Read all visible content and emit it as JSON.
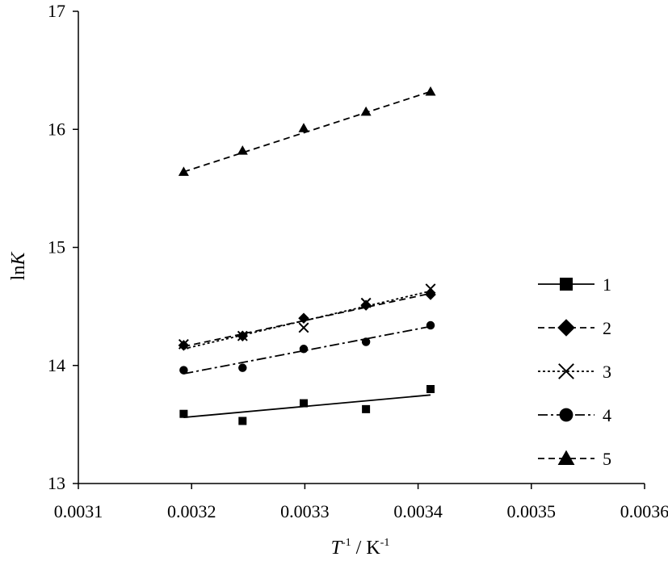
{
  "chart_data": {
    "type": "scatter",
    "xlabel": {
      "main": "T",
      "sup1": "-1",
      "rest": " / K",
      "sup2": "-1"
    },
    "ylabel": {
      "main": "ln",
      "italic": "K"
    },
    "xlim": [
      0.0031,
      0.0036
    ],
    "ylim": [
      13,
      17
    ],
    "xticks": [
      0.0031,
      0.0032,
      0.0033,
      0.0034,
      0.0035,
      0.0036
    ],
    "xtick_labels": [
      "0.0031",
      "0.0032",
      "0.0033",
      "0.0034",
      "0.0035",
      "0.0036"
    ],
    "yticks": [
      13,
      14,
      15,
      16,
      17
    ],
    "ytick_labels": [
      "13",
      "14",
      "15",
      "16",
      "17"
    ],
    "grid": false,
    "legend_position": "right",
    "series": [
      {
        "name": "1",
        "marker": "square",
        "line_style": "solid",
        "color": "#000000",
        "x": [
          0.003193,
          0.003245,
          0.003299,
          0.003354,
          0.003411
        ],
        "y": [
          13.59,
          13.53,
          13.68,
          13.63,
          13.8
        ],
        "fit": [
          [
            0.003193,
            13.56
          ],
          [
            0.003411,
            13.75
          ]
        ]
      },
      {
        "name": "2",
        "marker": "diamond",
        "line_style": "dashed",
        "color": "#000000",
        "x": [
          0.003193,
          0.003245,
          0.003299,
          0.003354,
          0.003411
        ],
        "y": [
          14.17,
          14.25,
          14.4,
          14.51,
          14.6
        ],
        "fit": [
          [
            0.003193,
            14.16
          ],
          [
            0.003411,
            14.61
          ]
        ]
      },
      {
        "name": "3",
        "marker": "cross",
        "line_style": "dotted",
        "color": "#000000",
        "x": [
          0.003193,
          0.003245,
          0.003299,
          0.003354,
          0.003411
        ],
        "y": [
          14.18,
          14.25,
          14.32,
          14.53,
          14.65
        ],
        "fit": [
          [
            0.003193,
            14.14
          ],
          [
            0.003411,
            14.63
          ]
        ]
      },
      {
        "name": "4",
        "marker": "circle",
        "line_style": "dash-dot",
        "color": "#000000",
        "x": [
          0.003193,
          0.003245,
          0.003299,
          0.003354,
          0.003411
        ],
        "y": [
          13.96,
          13.98,
          14.14,
          14.2,
          14.34
        ],
        "fit": [
          [
            0.003193,
            13.93
          ],
          [
            0.003411,
            14.33
          ]
        ]
      },
      {
        "name": "5",
        "marker": "triangle",
        "line_style": "dashed",
        "color": "#000000",
        "x": [
          0.003193,
          0.003245,
          0.003299,
          0.003354,
          0.003411
        ],
        "y": [
          15.64,
          15.82,
          16.01,
          16.15,
          16.32
        ],
        "fit": [
          [
            0.003193,
            15.64
          ],
          [
            0.003411,
            16.32
          ]
        ]
      }
    ]
  }
}
